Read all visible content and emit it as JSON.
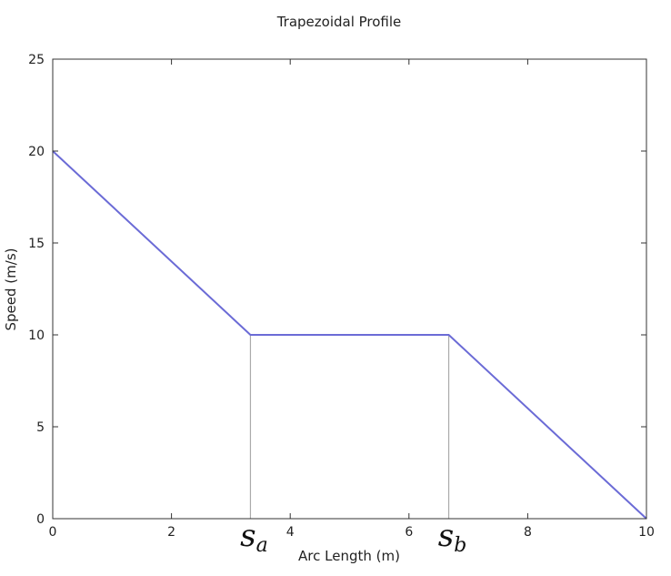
{
  "chart_data": {
    "type": "line",
    "title": "Trapezoidal Profile",
    "xlabel": "Arc Length (m)",
    "ylabel": "Speed (m/s)",
    "xlim": [
      0,
      10
    ],
    "ylim": [
      0,
      25
    ],
    "xticks": [
      0,
      2,
      4,
      6,
      8,
      10
    ],
    "yticks": [
      0,
      5,
      10,
      15,
      20,
      25
    ],
    "grid": false,
    "series": [
      {
        "x": [
          0,
          3.33,
          6.67,
          10
        ],
        "y": [
          20,
          10,
          10,
          0
        ],
        "color": "#6b6bd6"
      }
    ],
    "reference_lines": [
      {
        "x": 3.33,
        "y_top": 10,
        "label_main": "s",
        "label_sub": "a"
      },
      {
        "x": 6.67,
        "y_top": 10,
        "label_main": "s",
        "label_sub": "b"
      }
    ]
  },
  "colors": {
    "line": "#6b6bd6",
    "reference": "#aaaaaa",
    "axis": "#333333"
  }
}
